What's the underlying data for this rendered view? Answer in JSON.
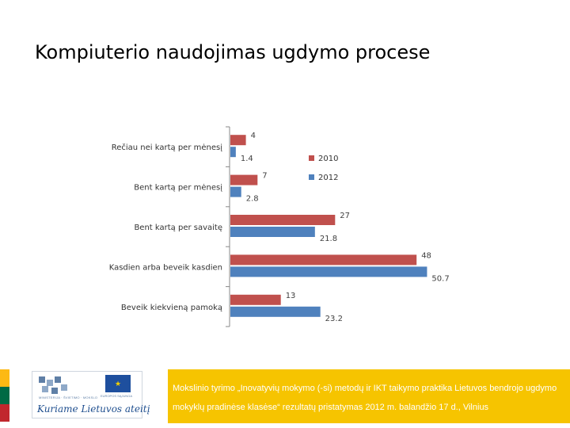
{
  "slide": {
    "title": "Kompiuterio naudojimas ugdymo procese",
    "footer_text": "Mokslinio tyrimo „Inovatyvių mokymo (-si) metodų ir IKT taikymo praktika Lietuvos bendrojo ugdymo mokyklų pradinėse klasėse“ rezultatų pristatymas 2012 m. balandžio 17 d., Vilnius",
    "logo_slogan": "Kuriame Lietuvos ateitį",
    "logo_ministry_text": "MINISTERIJA · ŠVIETIMO · MOKSLO",
    "logo_fund_text": "EUROPOS SĄJUNGA",
    "flag_colors": [
      "#fdb913",
      "#006a44",
      "#c1272d"
    ],
    "footer_color": "#f6c400"
  },
  "chart_data": {
    "type": "bar",
    "orientation": "horizontal",
    "categories": [
      "Rečiau nei kartą per mėnesį",
      "Bent kartą per mėnesį",
      "Bent kartą per savaitę",
      "Kasdien arba beveik kasdien",
      "Beveik kiekvieną pamoką"
    ],
    "series": [
      {
        "name": "2010",
        "color": "#c0504d",
        "values": [
          4,
          7,
          27,
          48,
          13
        ]
      },
      {
        "name": "2012",
        "color": "#4f81bd",
        "values": [
          1.4,
          2.8,
          21.8,
          50.7,
          23.2
        ]
      }
    ],
    "data_labels": {
      "2010": [
        "4",
        "7",
        "27",
        "48",
        "13"
      ],
      "2012": [
        "1.4",
        "2.8",
        "21.8",
        "50.7",
        "23.2"
      ]
    },
    "title": "",
    "xlabel": "",
    "ylabel": "",
    "xlim": [
      0,
      60
    ],
    "grid": false,
    "legend_position": "top-right"
  }
}
